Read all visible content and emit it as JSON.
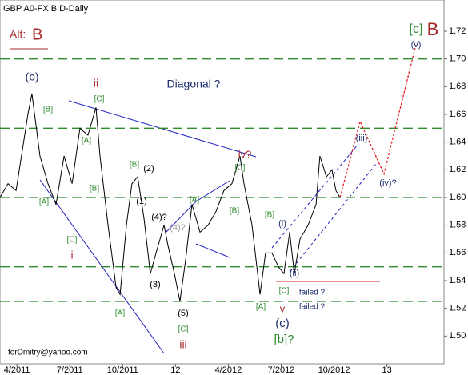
{
  "chart_data": {
    "type": "line",
    "title": "GBP A0-FX BID-Daily",
    "footer": "forDmitry@yahoo.com",
    "alt_label": "Alt:",
    "alt_wave": "B",
    "xlim": [
      2011.17,
      2013.27
    ],
    "ylim": [
      1.48,
      1.7425
    ],
    "xticks": [
      {
        "value": 2011.25,
        "label": "4/2011"
      },
      {
        "value": 2011.5,
        "label": "7/2011"
      },
      {
        "value": 2011.75,
        "label": "10/2011"
      },
      {
        "value": 2012.0,
        "label": "12"
      },
      {
        "value": 2012.25,
        "label": "4/2012"
      },
      {
        "value": 2012.5,
        "label": "7/2012"
      },
      {
        "value": 2012.75,
        "label": "10/2012"
      },
      {
        "value": 2013.0,
        "label": "13"
      }
    ],
    "yticks": [
      {
        "value": 1.5,
        "label": "1.50"
      },
      {
        "value": 1.52,
        "label": "1.52"
      },
      {
        "value": 1.54,
        "label": "1.54"
      },
      {
        "value": 1.56,
        "label": "1.56"
      },
      {
        "value": 1.58,
        "label": "1.58"
      },
      {
        "value": 1.6,
        "label": "1.60"
      },
      {
        "value": 1.62,
        "label": "1.62"
      },
      {
        "value": 1.64,
        "label": "1.64"
      },
      {
        "value": 1.66,
        "label": "1.66"
      },
      {
        "value": 1.68,
        "label": "1.68"
      },
      {
        "value": 1.7,
        "label": "1.70"
      },
      {
        "value": 1.72,
        "label": "1.72"
      }
    ],
    "levels": [
      1.7,
      1.65,
      1.6,
      1.55,
      1.525
    ],
    "level_color": "#2e8b2e",
    "series": [
      {
        "color": "#000000",
        "dash": false,
        "x": [
          2011.17,
          2011.208,
          2011.246,
          2011.302,
          2011.321,
          2011.359,
          2011.397,
          2011.435,
          2011.473,
          2011.511,
          2011.548,
          2011.586,
          2011.624,
          2011.643,
          2011.681,
          2011.719,
          2011.738,
          2011.768,
          2011.794,
          2011.821,
          2011.851,
          2011.881,
          2011.908,
          2011.946,
          2011.965,
          2011.995,
          2012.021,
          2012.048,
          2012.078,
          2012.116,
          2012.154,
          2012.192,
          2012.229,
          2012.267,
          2012.305,
          2012.324,
          2012.362,
          2012.4,
          2012.426,
          2012.456,
          2012.487,
          2012.513,
          2012.54,
          2012.562,
          2012.589,
          2012.627,
          2012.665,
          2012.683,
          2012.714,
          2012.74,
          2012.759,
          2012.778
        ],
        "values": [
          1.6,
          1.61,
          1.605,
          1.66,
          1.675,
          1.63,
          1.61,
          1.595,
          1.63,
          1.61,
          1.65,
          1.645,
          1.665,
          1.63,
          1.58,
          1.535,
          1.53,
          1.58,
          1.61,
          1.615,
          1.585,
          1.545,
          1.56,
          1.58,
          1.565,
          1.545,
          1.525,
          1.555,
          1.595,
          1.575,
          1.58,
          1.59,
          1.605,
          1.61,
          1.63,
          1.61,
          1.58,
          1.53,
          1.56,
          1.56,
          1.55,
          1.545,
          1.575,
          1.545,
          1.57,
          1.58,
          1.595,
          1.63,
          1.615,
          1.62,
          1.605,
          1.6
        ]
      },
      {
        "color": "#e8202a",
        "dash": true,
        "x": [
          2012.778,
          2012.873,
          2012.986,
          2013.137
        ],
        "values": [
          1.6,
          1.655,
          1.617,
          1.71
        ]
      }
    ],
    "annotations": [
      {
        "text": "(b)",
        "color": "#1a2a6c"
      },
      {
        "text": "[B]",
        "color": "#2e8b2e"
      },
      {
        "text": "[A]",
        "color": "#2e8b2e"
      },
      {
        "text": "[C]",
        "color": "#2e8b2e"
      },
      {
        "text": "i",
        "color": "#a52a2a"
      },
      {
        "text": "ii",
        "color": "#a52a2a"
      },
      {
        "text": "[C]",
        "color": "#2e8b2e"
      },
      {
        "text": "[A]",
        "color": "#2e8b2e"
      },
      {
        "text": "[B]",
        "color": "#2e8b2e"
      },
      {
        "text": "[B]",
        "color": "#2e8b2e"
      },
      {
        "text": "(2)",
        "color": "#000000"
      },
      {
        "text": "(1)",
        "color": "#000000"
      },
      {
        "text": "(4)?",
        "color": "#000000"
      },
      {
        "text": "(4)?",
        "color": "#999999"
      },
      {
        "text": "(3)",
        "color": "#000000"
      },
      {
        "text": "(5)",
        "color": "#000000"
      },
      {
        "text": "[C]",
        "color": "#2e8b2e"
      },
      {
        "text": "iii",
        "color": "#a52a2a"
      },
      {
        "text": "[A]",
        "color": "#2e8b2e"
      },
      {
        "text": "Diagonal ?",
        "color": "#1a2a6c"
      },
      {
        "text": "iv?",
        "color": "#a52a2a"
      },
      {
        "text": "[C]",
        "color": "#2e8b2e"
      },
      {
        "text": "[A]",
        "color": "#2e8b2e"
      },
      {
        "text": "[B]",
        "color": "#2e8b2e"
      },
      {
        "text": "[A]",
        "color": "#2e8b2e"
      },
      {
        "text": "(c)",
        "color": "#1a2a6c"
      },
      {
        "text": "[b]?",
        "color": "#2e8b2e"
      },
      {
        "text": "v",
        "color": "#a52a2a"
      },
      {
        "text": "[B]",
        "color": "#2e8b2e"
      },
      {
        "text": "(i)",
        "color": "#1a2a6c"
      },
      {
        "text": "(ii)",
        "color": "#1a2a6c"
      },
      {
        "text": "[C]",
        "color": "#2e8b2e"
      },
      {
        "text": "failed ?",
        "color": "#1a2a6c"
      },
      {
        "text": "failed ?",
        "color": "#1a2a6c"
      },
      {
        "text": "(iii)",
        "color": "#1a2a6c"
      },
      {
        "text": "(iv)?",
        "color": "#1a2a6c"
      },
      {
        "text": "(v)",
        "color": "#1a2a6c"
      },
      {
        "text": "[c]",
        "color": "#2e8b2e"
      },
      {
        "text": "B",
        "color": "#a52a2a"
      }
    ]
  }
}
